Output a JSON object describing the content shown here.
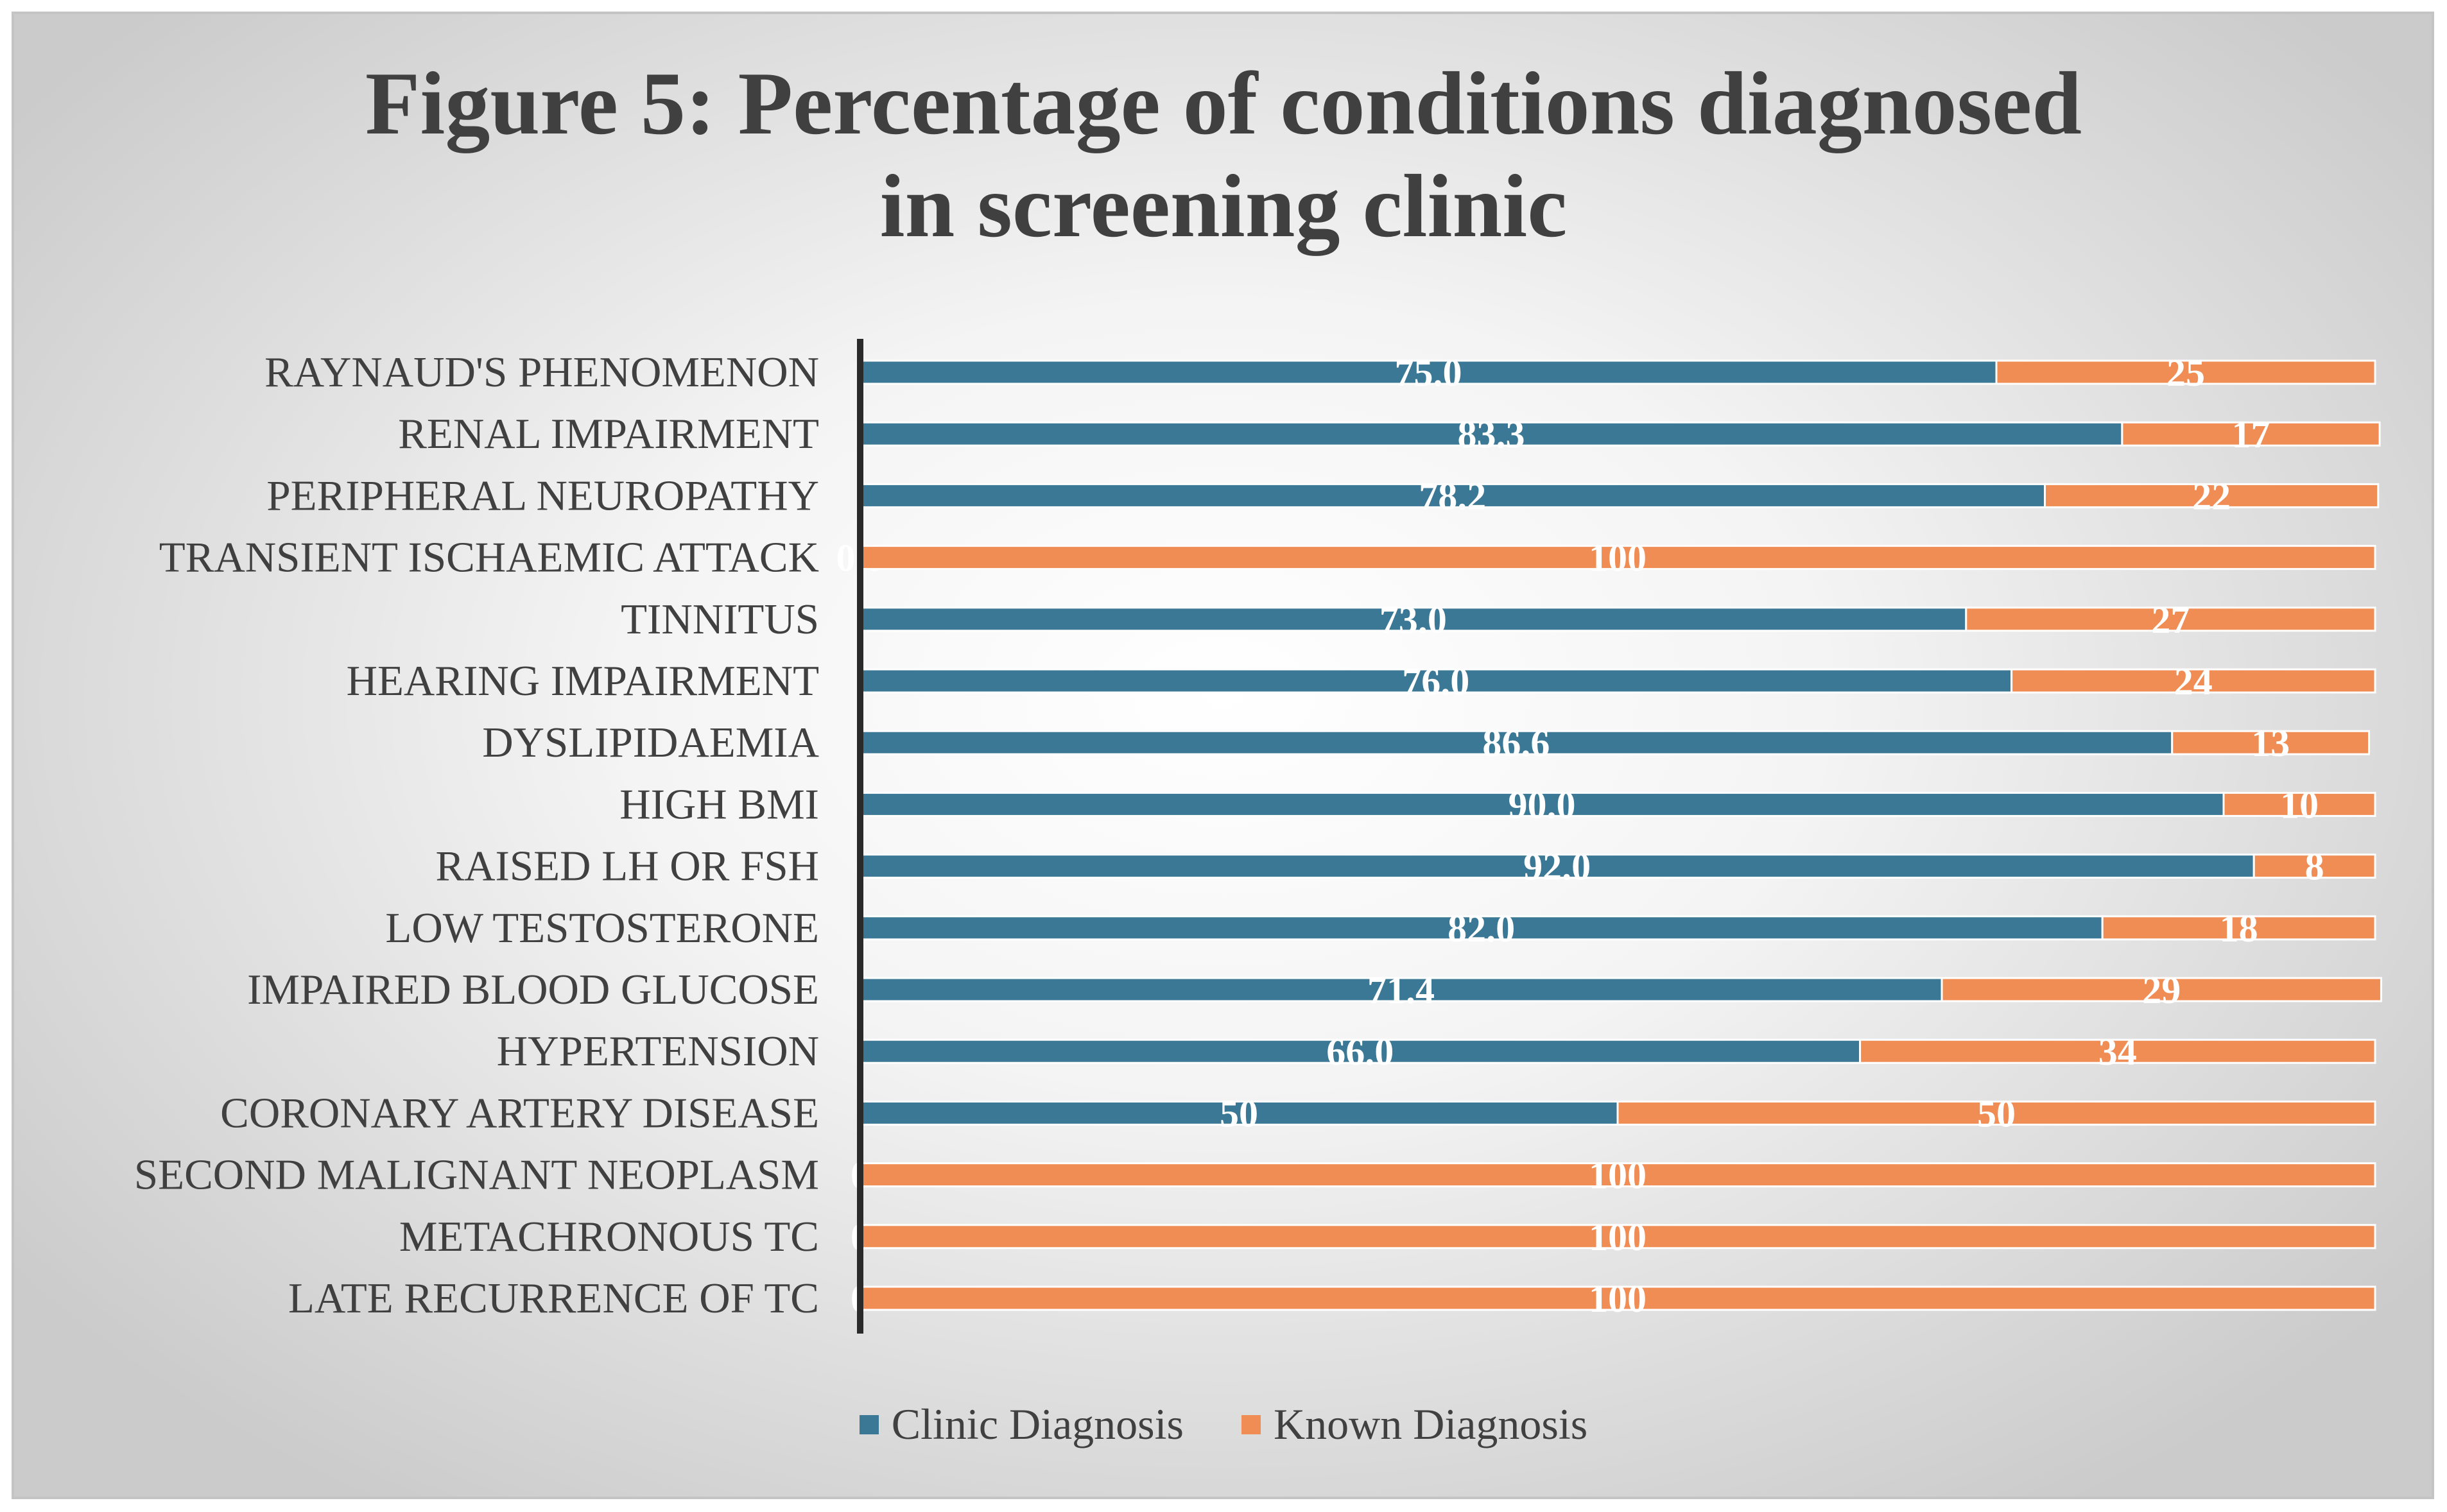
{
  "chart_data": {
    "type": "bar",
    "orientation": "horizontal",
    "stacked": true,
    "title_lines": [
      "Figure 5: Percentage of conditions diagnosed",
      "in screening clinic"
    ],
    "categories": [
      "RAYNAUD'S PHENOMENON",
      "RENAL IMPAIRMENT",
      "PERIPHERAL NEUROPATHY",
      "TRANSIENT ISCHAEMIC ATTACK",
      "TINNITUS",
      "HEARING IMPAIRMENT",
      "DYSLIPIDAEMIA",
      "HIGH BMI",
      "RAISED LH OR FSH",
      "LOW TESTOSTERONE",
      "IMPAIRED BLOOD GLUCOSE",
      "HYPERTENSION",
      "CORONARY ARTERY DISEASE",
      "SECOND MALIGNANT NEOPLASM",
      "METACHRONOUS TC",
      "LATE RECURRENCE OF TC"
    ],
    "series": [
      {
        "name": "Clinic Diagnosis",
        "color": "#3b7895",
        "values": [
          75.0,
          83.3,
          78.2,
          0,
          73.0,
          76.0,
          86.6,
          90.0,
          92.0,
          82.0,
          71.4,
          66.0,
          50,
          0,
          0,
          0
        ],
        "labels": [
          "75.0",
          "83.3",
          "78.2",
          "0.0",
          "73.0",
          "76.0",
          "86.6",
          "90.0",
          "92.0",
          "82.0",
          "71.4",
          "66.0",
          "50",
          "0",
          "0",
          "0"
        ]
      },
      {
        "name": "Known Diagnosis",
        "color": "#ef8d55",
        "values": [
          25,
          17,
          22,
          100,
          27,
          24,
          13,
          10,
          8,
          18,
          29,
          34,
          50,
          100,
          100,
          100
        ],
        "labels": [
          "25",
          "17",
          "22",
          "100",
          "27",
          "24",
          "13",
          "10",
          "8",
          "18",
          "29",
          "34",
          "50",
          "100",
          "100",
          "100"
        ]
      }
    ],
    "xlim": [
      0,
      100
    ],
    "grid": false,
    "legend_position": "bottom"
  }
}
